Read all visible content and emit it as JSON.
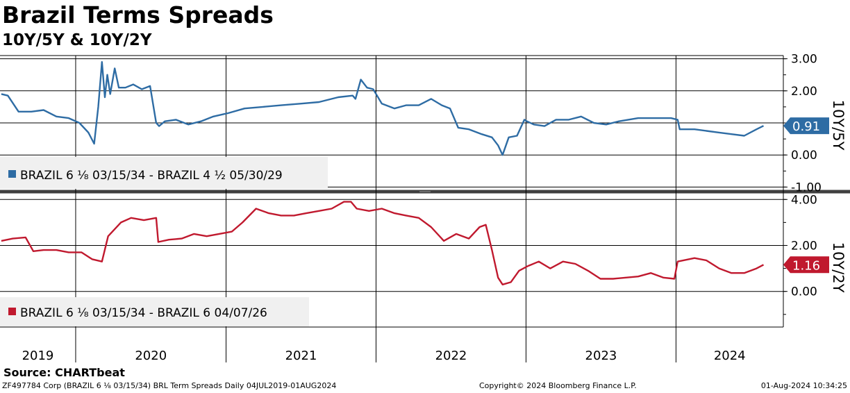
{
  "header": {
    "title": "Brazil Terms Spreads",
    "subtitle": "10Y/5Y & 10Y/2Y"
  },
  "footer": {
    "source": "Source: CHARTbeat",
    "left": "ZF497784 Corp (BRAZIL 6 ⅛ 03/15/34) BRL Term Spreads  Daily 04JUL2019-01AUG2024",
    "middle": "Copyright© 2024 Bloomberg Finance L.P.",
    "right": "01-Aug-2024 10:34:25"
  },
  "colors": {
    "series1": "#2e6ca4",
    "series2": "#c0192e",
    "grid": "#000000"
  },
  "chart_data": [
    {
      "type": "line",
      "axis_title": "10Y/5Y",
      "y_ticks": [
        "3.00",
        "2.00",
        "1.00",
        "0.00",
        "-1.00"
      ],
      "y_tick_values": [
        3,
        2,
        1,
        0,
        -1
      ],
      "ylim": [
        -1.1,
        3.1
      ],
      "last_value_label": "0.91",
      "legend": "BRAZIL 6 ⅛ 03/15/34 - BRAZIL 4 ½ 05/30/29",
      "x_dates": [
        "2019-07-04",
        "2019-07-20",
        "2019-08-15",
        "2019-09-15",
        "2019-10-15",
        "2019-11-15",
        "2019-12-15",
        "2020-01-10",
        "2020-02-01",
        "2020-02-15",
        "2020-02-25",
        "2020-03-05",
        "2020-03-12",
        "2020-03-18",
        "2020-03-25",
        "2020-04-05",
        "2020-04-15",
        "2020-05-01",
        "2020-05-20",
        "2020-06-10",
        "2020-06-30",
        "2020-07-15",
        "2020-07-22",
        "2020-08-05",
        "2020-09-01",
        "2020-10-01",
        "2020-11-01",
        "2020-12-01",
        "2021-01-05",
        "2021-02-15",
        "2021-04-01",
        "2021-05-15",
        "2021-07-01",
        "2021-08-15",
        "2021-10-01",
        "2021-11-05",
        "2021-11-12",
        "2021-11-25",
        "2021-12-10",
        "2021-12-25",
        "2022-01-15",
        "2022-02-15",
        "2022-03-15",
        "2022-04-15",
        "2022-05-15",
        "2022-06-10",
        "2022-06-30",
        "2022-07-20",
        "2022-08-15",
        "2022-09-15",
        "2022-10-10",
        "2022-10-25",
        "2022-11-05",
        "2022-11-20",
        "2022-12-10",
        "2022-12-28",
        "2023-01-03",
        "2023-01-20",
        "2023-02-15",
        "2023-03-15",
        "2023-04-15",
        "2023-05-15",
        "2023-06-15",
        "2023-07-15",
        "2023-08-15",
        "2023-10-01",
        "2023-11-15",
        "2023-12-20",
        "2024-01-05",
        "2024-01-10",
        "2024-02-15",
        "2024-03-15",
        "2024-04-15",
        "2024-05-15",
        "2024-06-15",
        "2024-07-15",
        "2024-08-01"
      ],
      "values": [
        1.9,
        1.85,
        1.35,
        1.35,
        1.4,
        1.2,
        1.15,
        1.0,
        0.7,
        0.35,
        1.5,
        2.9,
        1.8,
        2.5,
        1.9,
        2.7,
        2.1,
        2.1,
        2.2,
        2.05,
        2.15,
        1.0,
        0.9,
        1.05,
        1.1,
        0.95,
        1.05,
        1.2,
        1.3,
        1.45,
        1.5,
        1.55,
        1.6,
        1.65,
        1.8,
        1.85,
        1.75,
        2.35,
        2.1,
        2.05,
        1.6,
        1.45,
        1.55,
        1.55,
        1.75,
        1.55,
        1.45,
        0.85,
        0.8,
        0.65,
        0.55,
        0.3,
        0.0,
        0.55,
        0.6,
        1.1,
        1.05,
        0.95,
        0.9,
        1.1,
        1.1,
        1.2,
        1.0,
        0.95,
        1.05,
        1.15,
        1.15,
        1.15,
        1.1,
        0.8,
        0.8,
        0.75,
        0.7,
        0.65,
        0.6,
        0.8,
        0.91
      ]
    },
    {
      "type": "line",
      "axis_title": "10Y/2Y",
      "y_ticks": [
        "4.00",
        "2.00",
        "0.00"
      ],
      "y_tick_values": [
        4,
        2,
        0
      ],
      "ylim": [
        -1.55,
        4.25
      ],
      "last_value_label": "1.16",
      "legend": "BRAZIL 6 ⅛ 03/15/34 - BRAZIL 6 04/07/26",
      "x_dates": [
        "2019-07-04",
        "2019-08-01",
        "2019-09-01",
        "2019-09-20",
        "2019-10-15",
        "2019-11-15",
        "2019-12-15",
        "2020-01-15",
        "2020-02-10",
        "2020-03-05",
        "2020-03-20",
        "2020-04-20",
        "2020-05-15",
        "2020-06-15",
        "2020-07-15",
        "2020-07-20",
        "2020-08-15",
        "2020-09-15",
        "2020-10-15",
        "2020-11-15",
        "2020-12-15",
        "2021-01-15",
        "2021-02-10",
        "2021-03-15",
        "2021-04-15",
        "2021-05-15",
        "2021-06-15",
        "2021-07-15",
        "2021-08-15",
        "2021-09-15",
        "2021-10-15",
        "2021-11-01",
        "2021-11-15",
        "2021-12-15",
        "2022-01-15",
        "2022-02-15",
        "2022-03-15",
        "2022-04-15",
        "2022-05-15",
        "2022-06-15",
        "2022-07-15",
        "2022-08-15",
        "2022-09-10",
        "2022-09-25",
        "2022-10-10",
        "2022-10-25",
        "2022-11-05",
        "2022-11-25",
        "2022-12-15",
        "2023-01-05",
        "2023-02-01",
        "2023-03-01",
        "2023-04-01",
        "2023-05-01",
        "2023-06-01",
        "2023-07-01",
        "2023-08-01",
        "2023-09-01",
        "2023-10-01",
        "2023-11-01",
        "2023-12-01",
        "2023-12-28",
        "2024-01-05",
        "2024-02-15",
        "2024-03-15",
        "2024-04-15",
        "2024-05-15",
        "2024-06-15",
        "2024-07-15",
        "2024-08-01"
      ],
      "values": [
        2.2,
        2.3,
        2.35,
        1.75,
        1.8,
        1.8,
        1.7,
        1.7,
        1.4,
        1.3,
        2.4,
        3.0,
        3.2,
        3.1,
        3.2,
        2.15,
        2.25,
        2.3,
        2.5,
        2.4,
        2.5,
        2.6,
        3.0,
        3.6,
        3.4,
        3.3,
        3.3,
        3.4,
        3.5,
        3.6,
        3.9,
        3.9,
        3.6,
        3.5,
        3.6,
        3.4,
        3.3,
        3.2,
        2.8,
        2.2,
        2.5,
        2.3,
        2.8,
        2.9,
        1.8,
        0.6,
        0.3,
        0.4,
        0.9,
        1.1,
        1.3,
        1.0,
        1.3,
        1.2,
        0.9,
        0.55,
        0.55,
        0.6,
        0.65,
        0.8,
        0.6,
        0.55,
        1.3,
        1.45,
        1.35,
        1.0,
        0.8,
        0.8,
        1.0,
        1.16
      ]
    }
  ],
  "x_axis": {
    "years": [
      "2019",
      "2020",
      "2021",
      "2022",
      "2023",
      "2024"
    ]
  }
}
